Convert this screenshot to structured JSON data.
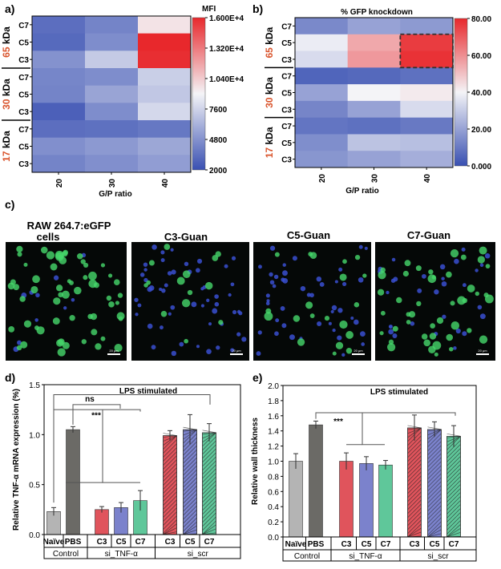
{
  "panel_labels": {
    "a": "a)",
    "b": "b)",
    "c": "c)",
    "d": "d)",
    "e": "e)"
  },
  "colors": {
    "low": "#3950b2",
    "mid": "#f4f4f7",
    "high": "#e8282c",
    "num": "#d9532b",
    "bar_gray": "#b4b4b4",
    "bar_dark": "#6b6a66",
    "bar_red": "#e0545c",
    "bar_blue": "#7b82cc",
    "bar_green": "#5fc79a"
  },
  "chart_data": [
    {
      "id": "a",
      "type": "heatmap",
      "title": "MFI",
      "xlabel": "G/P ratio",
      "x": [
        "20",
        "30",
        "40"
      ],
      "y_rows": [
        "C7",
        "C5",
        "C3",
        "C7",
        "C5",
        "C3",
        "C7",
        "C5",
        "C3"
      ],
      "groups": [
        {
          "num": "65",
          "unit": " kDa"
        },
        {
          "num": "30",
          "unit": " kDa"
        },
        {
          "num": "17",
          "unit": " kDa"
        }
      ],
      "values": [
        [
          3300,
          4200,
          9600
        ],
        [
          3100,
          4600,
          16000
        ],
        [
          4800,
          7200,
          15800
        ],
        [
          4300,
          4600,
          7400
        ],
        [
          4200,
          5600,
          7100
        ],
        [
          2700,
          4600,
          7800
        ],
        [
          3300,
          3400,
          3700
        ],
        [
          4700,
          5100,
          5700
        ],
        [
          4200,
          4700,
          5300
        ]
      ],
      "vmin": 2000,
      "vmax": 16000,
      "colorbar_ticks": [
        "1.600E+4",
        "1.320E+4",
        "1.040E+4",
        "7600",
        "4800",
        "2000"
      ]
    },
    {
      "id": "b",
      "type": "heatmap",
      "title": "% GFP knockdown",
      "xlabel": "G/P ratio",
      "x": [
        "20",
        "30",
        "40"
      ],
      "y_rows": [
        "C7",
        "C5",
        "C3",
        "C7",
        "C5",
        "C3",
        "C7",
        "C5",
        "C3"
      ],
      "groups": [
        {
          "num": "65",
          "unit": " kDa"
        },
        {
          "num": "30",
          "unit": " kDa"
        },
        {
          "num": "17",
          "unit": " kDa"
        }
      ],
      "values": [
        [
          14,
          20,
          18
        ],
        [
          38,
          55,
          76
        ],
        [
          34,
          58,
          78
        ],
        [
          5,
          6,
          8
        ],
        [
          20,
          40,
          42
        ],
        [
          13,
          20,
          34
        ],
        [
          9,
          8,
          10
        ],
        [
          15,
          28,
          27
        ],
        [
          17,
          20,
          23
        ]
      ],
      "vmin": 0,
      "vmax": 80,
      "colorbar_ticks": [
        "80.00",
        "60.00",
        "40.00",
        "20.00",
        "0.000"
      ]
    },
    {
      "id": "d",
      "type": "bar",
      "title": "LPS stimulated",
      "ylabel": "Relative TNF-α mRNA expression (%)",
      "ylim": [
        0,
        1.5
      ],
      "yticks": [
        "0.0",
        "0.5",
        "1.0",
        "1.5"
      ],
      "categories": [
        "Naïve",
        "PBS",
        "C3",
        "C5",
        "C7",
        "C3",
        "C5",
        "C7"
      ],
      "values": [
        0.23,
        1.05,
        0.25,
        0.27,
        0.34,
        0.99,
        1.05,
        1.02
      ],
      "errors": [
        0.04,
        0.03,
        0.03,
        0.05,
        0.1,
        0.05,
        0.15,
        0.09
      ],
      "groups": [
        "Control",
        "si_TNF-α",
        "si_scr"
      ],
      "annotations": [
        "ns",
        "***"
      ]
    },
    {
      "id": "e",
      "type": "bar",
      "title": "LPS stimulated",
      "ylabel": "Relative wall thickness",
      "ylim": [
        0,
        2.0
      ],
      "yticks": [
        "0.0",
        "0.2",
        "0.4",
        "0.6",
        "0.8",
        "1.0",
        "1.2",
        "1.4",
        "1.6",
        "1.8",
        "2.0"
      ],
      "categories": [
        "Naïve",
        "PBS",
        "C3",
        "C5",
        "C7",
        "C3",
        "C5",
        "C7"
      ],
      "values": [
        1.0,
        1.48,
        1.0,
        0.97,
        0.95,
        1.44,
        1.42,
        1.33
      ],
      "errors": [
        0.1,
        0.05,
        0.11,
        0.09,
        0.06,
        0.17,
        0.1,
        0.14
      ],
      "groups": [
        "Control",
        "si_TNF-α",
        "si_scr"
      ],
      "annotations": [
        "***"
      ]
    }
  ],
  "micrographs": {
    "titles": [
      "RAW 264.7:eGFP cells",
      "C3-Guan",
      "C5-Guan",
      "C7-Guan"
    ],
    "title_line1": "RAW 264.7:eGFP",
    "title_line2": "cells",
    "scale_label": "20 μm"
  }
}
